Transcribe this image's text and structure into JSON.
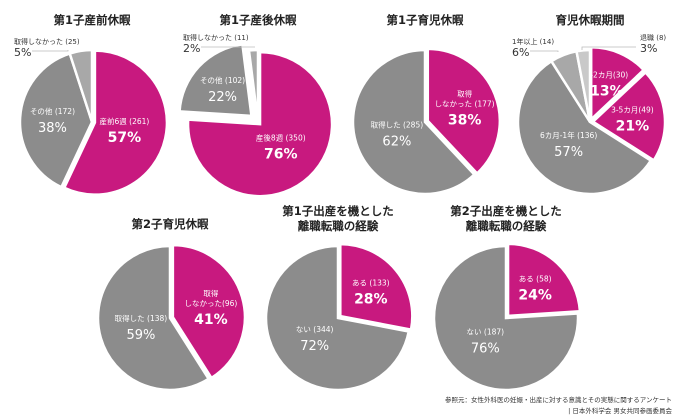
{
  "colors": {
    "accent": "#C8197F",
    "gray": "#8C8C8C",
    "light_gray": "#A8A8A8",
    "lighter_gray": "#C9C9C9"
  },
  "chart_data": [
    {
      "type": "pie",
      "title": [
        "第1子産前休暇"
      ],
      "slices": [
        {
          "label": [
            "産前6週 (261)"
          ],
          "count": 261,
          "percent": 57,
          "color": "accent",
          "highlight": true
        },
        {
          "label": [
            "その他 (172)"
          ],
          "count": 172,
          "percent": 38,
          "color": "gray"
        },
        {
          "label": [
            "取得しなかった (25)"
          ],
          "count": 25,
          "percent": 5,
          "color": "light_gray",
          "outside": true
        }
      ]
    },
    {
      "type": "pie",
      "title": [
        "第1子産後休暇"
      ],
      "slices": [
        {
          "label": [
            "産後8週 (350)"
          ],
          "count": 350,
          "percent": 76,
          "color": "accent",
          "highlight": true
        },
        {
          "label": [
            "その他 (102)"
          ],
          "count": 102,
          "percent": 22,
          "color": "gray",
          "explode": true
        },
        {
          "label": [
            "取得しなかった (11)"
          ],
          "count": 11,
          "percent": 2,
          "color": "light_gray",
          "outside": true
        }
      ]
    },
    {
      "type": "pie",
      "title": [
        "第1子育児休暇"
      ],
      "slices": [
        {
          "label": [
            "取得",
            "しなかった (177)"
          ],
          "count": 177,
          "percent": 38,
          "color": "accent",
          "highlight": true
        },
        {
          "label": [
            "取得した (285)"
          ],
          "count": 285,
          "percent": 62,
          "color": "gray"
        }
      ]
    },
    {
      "type": "pie",
      "title": [
        "育児休暇期間"
      ],
      "slices": [
        {
          "label": [
            "1-2カ月(30)"
          ],
          "count": 30,
          "percent": 13,
          "color": "accent",
          "highlight": true
        },
        {
          "label": [
            "3-5カ月(49)"
          ],
          "count": 49,
          "percent": 21,
          "color": "accent",
          "highlight": true
        },
        {
          "label": [
            "6カ月-1年 (136)"
          ],
          "count": 136,
          "percent": 57,
          "color": "gray"
        },
        {
          "label": [
            "1年以上 (14)"
          ],
          "count": 14,
          "percent": 6,
          "color": "light_gray",
          "outside": true
        },
        {
          "label": [
            "退職 (8)"
          ],
          "count": 8,
          "percent": 3,
          "color": "lighter_gray",
          "outside": true
        }
      ]
    },
    {
      "type": "pie",
      "title": [
        "第2子育児休暇"
      ],
      "slices": [
        {
          "label": [
            "取得",
            "しなかった(96)"
          ],
          "count": 96,
          "percent": 41,
          "color": "accent",
          "highlight": true
        },
        {
          "label": [
            "取得した (138)"
          ],
          "count": 138,
          "percent": 59,
          "color": "gray"
        }
      ]
    },
    {
      "type": "pie",
      "title": [
        "第1子出産を機とした",
        "離職転職の経験"
      ],
      "slices": [
        {
          "label": [
            "ある (133)"
          ],
          "count": 133,
          "percent": 28,
          "color": "accent",
          "highlight": true
        },
        {
          "label": [
            "ない (344)"
          ],
          "count": 344,
          "percent": 72,
          "color": "gray"
        }
      ]
    },
    {
      "type": "pie",
      "title": [
        "第2子出産を機とした",
        "離職転職の経験"
      ],
      "slices": [
        {
          "label": [
            "ある (58)"
          ],
          "count": 58,
          "percent": 24,
          "color": "accent",
          "highlight": true
        },
        {
          "label": [
            "ない (187)"
          ],
          "count": 187,
          "percent": 76,
          "color": "gray"
        }
      ]
    }
  ],
  "source": [
    "参照元：女性外科医の妊娠・出産に対する意識とその実態に関するアンケート",
    "| 日本外科学会 男女共同参画委員会"
  ]
}
